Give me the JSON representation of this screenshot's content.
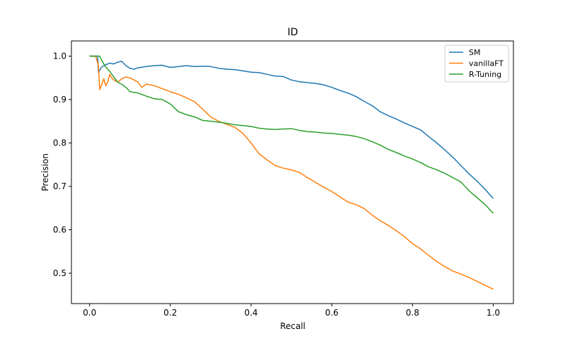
{
  "chart_data": {
    "type": "line",
    "title": "ID",
    "xlabel": "Recall",
    "ylabel": "Precision",
    "xlim": [
      -0.045,
      1.05
    ],
    "ylim": [
      0.43,
      1.035
    ],
    "xticks": [
      0.0,
      0.2,
      0.4,
      0.6,
      0.8,
      1.0
    ],
    "xtick_labels": [
      "0.0",
      "0.2",
      "0.4",
      "0.6",
      "0.8",
      "1.0"
    ],
    "yticks": [
      0.5,
      0.6,
      0.7,
      0.8,
      0.9,
      1.0
    ],
    "ytick_labels": [
      "0.5",
      "0.6",
      "0.7",
      "0.8",
      "0.9",
      "1.0"
    ],
    "grid": false,
    "legend_position": "top-right",
    "series": [
      {
        "name": "SM",
        "color": "#1f77b4",
        "x": [
          0.0,
          0.02,
          0.022,
          0.03,
          0.04,
          0.05,
          0.06,
          0.07,
          0.08,
          0.09,
          0.1,
          0.11,
          0.12,
          0.14,
          0.16,
          0.18,
          0.2,
          0.22,
          0.24,
          0.26,
          0.28,
          0.3,
          0.32,
          0.34,
          0.36,
          0.38,
          0.4,
          0.42,
          0.44,
          0.46,
          0.48,
          0.5,
          0.52,
          0.54,
          0.56,
          0.58,
          0.6,
          0.62,
          0.64,
          0.66,
          0.68,
          0.7,
          0.72,
          0.74,
          0.76,
          0.78,
          0.8,
          0.82,
          0.84,
          0.86,
          0.88,
          0.9,
          0.92,
          0.94,
          0.96,
          0.98,
          1.0
        ],
        "y": [
          1.0,
          1.0,
          0.963,
          0.975,
          0.98,
          0.984,
          0.982,
          0.986,
          0.988,
          0.978,
          0.972,
          0.97,
          0.973,
          0.976,
          0.978,
          0.979,
          0.974,
          0.976,
          0.978,
          0.976,
          0.977,
          0.976,
          0.972,
          0.97,
          0.969,
          0.966,
          0.963,
          0.962,
          0.958,
          0.954,
          0.953,
          0.945,
          0.941,
          0.939,
          0.937,
          0.934,
          0.928,
          0.921,
          0.915,
          0.907,
          0.896,
          0.886,
          0.872,
          0.863,
          0.855,
          0.846,
          0.838,
          0.83,
          0.815,
          0.8,
          0.784,
          0.767,
          0.748,
          0.729,
          0.712,
          0.693,
          0.672
        ]
      },
      {
        "name": "vanillaFT",
        "color": "#ff7f0e",
        "x": [
          0.0,
          0.015,
          0.022,
          0.025,
          0.03,
          0.035,
          0.04,
          0.045,
          0.05,
          0.055,
          0.06,
          0.07,
          0.08,
          0.09,
          0.1,
          0.11,
          0.12,
          0.13,
          0.14,
          0.16,
          0.18,
          0.2,
          0.22,
          0.24,
          0.26,
          0.28,
          0.3,
          0.32,
          0.34,
          0.36,
          0.38,
          0.4,
          0.42,
          0.44,
          0.46,
          0.48,
          0.5,
          0.52,
          0.54,
          0.56,
          0.58,
          0.6,
          0.62,
          0.64,
          0.66,
          0.68,
          0.7,
          0.72,
          0.74,
          0.76,
          0.78,
          0.8,
          0.82,
          0.84,
          0.86,
          0.88,
          0.9,
          0.92,
          0.94,
          0.96,
          0.98,
          1.0
        ],
        "y": [
          1.0,
          1.0,
          0.978,
          0.923,
          0.935,
          0.948,
          0.932,
          0.94,
          0.958,
          0.95,
          0.945,
          0.94,
          0.948,
          0.952,
          0.95,
          0.945,
          0.94,
          0.928,
          0.936,
          0.932,
          0.925,
          0.918,
          0.912,
          0.904,
          0.895,
          0.878,
          0.86,
          0.85,
          0.843,
          0.836,
          0.822,
          0.8,
          0.775,
          0.761,
          0.748,
          0.742,
          0.738,
          0.732,
          0.72,
          0.709,
          0.698,
          0.688,
          0.676,
          0.664,
          0.658,
          0.649,
          0.634,
          0.621,
          0.61,
          0.598,
          0.584,
          0.568,
          0.556,
          0.541,
          0.527,
          0.515,
          0.505,
          0.498,
          0.49,
          0.481,
          0.472,
          0.463
        ]
      },
      {
        "name": "R-Tuning",
        "color": "#2ca02c",
        "x": [
          0.0,
          0.025,
          0.03,
          0.04,
          0.05,
          0.06,
          0.07,
          0.08,
          0.09,
          0.1,
          0.12,
          0.14,
          0.16,
          0.18,
          0.2,
          0.22,
          0.24,
          0.26,
          0.28,
          0.3,
          0.32,
          0.34,
          0.36,
          0.38,
          0.4,
          0.42,
          0.44,
          0.46,
          0.48,
          0.5,
          0.52,
          0.54,
          0.56,
          0.58,
          0.6,
          0.62,
          0.64,
          0.66,
          0.68,
          0.7,
          0.72,
          0.74,
          0.76,
          0.78,
          0.8,
          0.82,
          0.84,
          0.86,
          0.88,
          0.9,
          0.92,
          0.94,
          0.96,
          0.98,
          1.0
        ],
        "y": [
          1.0,
          1.0,
          0.99,
          0.975,
          0.965,
          0.952,
          0.94,
          0.935,
          0.928,
          0.918,
          0.915,
          0.908,
          0.902,
          0.9,
          0.89,
          0.872,
          0.865,
          0.86,
          0.852,
          0.85,
          0.848,
          0.845,
          0.842,
          0.84,
          0.838,
          0.834,
          0.832,
          0.831,
          0.832,
          0.833,
          0.829,
          0.826,
          0.825,
          0.823,
          0.822,
          0.82,
          0.818,
          0.815,
          0.81,
          0.803,
          0.795,
          0.785,
          0.778,
          0.77,
          0.763,
          0.755,
          0.745,
          0.738,
          0.73,
          0.72,
          0.71,
          0.69,
          0.674,
          0.658,
          0.638
        ]
      }
    ]
  }
}
